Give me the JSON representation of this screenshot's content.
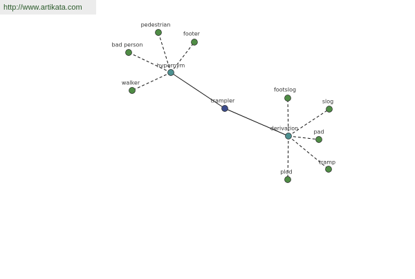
{
  "header": {
    "url": "http://www.artikata.com"
  },
  "nodes": [
    {
      "label": "trampler"
    },
    {
      "label": "hypernym"
    },
    {
      "label": "derivation"
    },
    {
      "label": "pedestrian"
    },
    {
      "label": "footer"
    },
    {
      "label": "bad person"
    },
    {
      "label": "walker"
    },
    {
      "label": "footslog"
    },
    {
      "label": "slog"
    },
    {
      "label": "pad"
    },
    {
      "label": "tramp"
    },
    {
      "label": "plod"
    }
  ]
}
